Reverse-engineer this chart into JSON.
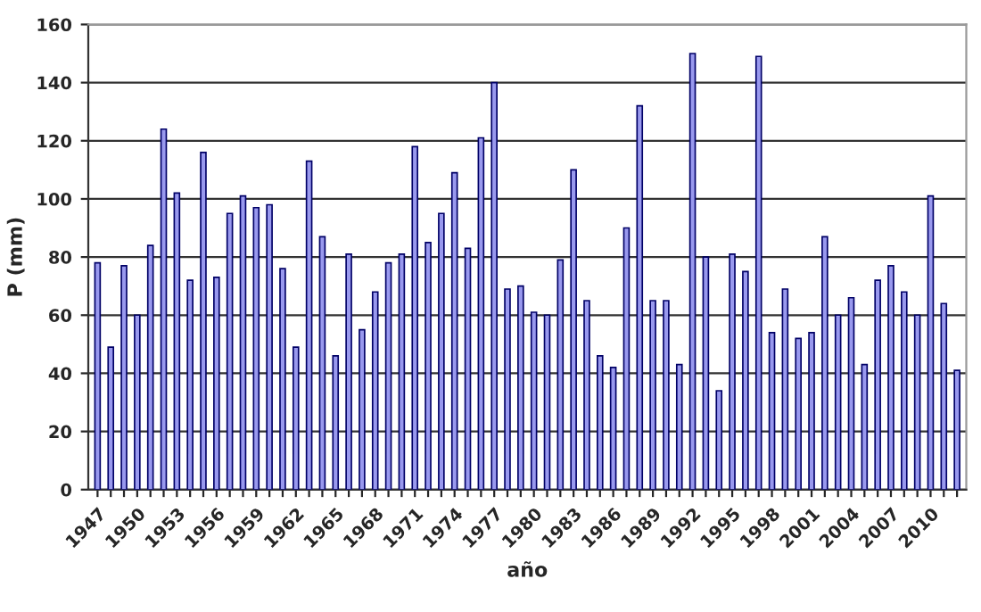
{
  "chart_data": {
    "type": "bar",
    "xlabel": "año",
    "ylabel": "P (mm)",
    "categories": [
      "1947",
      null,
      null,
      "1950",
      null,
      null,
      "1953",
      null,
      null,
      "1956",
      null,
      null,
      "1959",
      null,
      null,
      "1962",
      null,
      null,
      "1965",
      null,
      null,
      "1968",
      null,
      null,
      "1971",
      null,
      null,
      "1974",
      null,
      null,
      "1977",
      null,
      null,
      "1980",
      null,
      null,
      "1983",
      null,
      null,
      "1986",
      null,
      null,
      "1989",
      null,
      null,
      "1992",
      null,
      null,
      "1995",
      null,
      null,
      "1998",
      null,
      null,
      "2001",
      null,
      null,
      "2004",
      null,
      null,
      "2007",
      null,
      null,
      "2010",
      null,
      null
    ],
    "values": [
      78,
      49,
      77,
      60,
      84,
      124,
      102,
      72,
      116,
      73,
      95,
      101,
      97,
      98,
      76,
      49,
      113,
      87,
      46,
      81,
      55,
      68,
      78,
      81,
      118,
      85,
      95,
      109,
      83,
      121,
      140,
      69,
      70,
      61,
      60,
      79,
      110,
      65,
      46,
      42,
      90,
      132,
      65,
      65,
      43,
      150,
      80,
      34,
      81,
      75,
      149,
      54,
      69,
      52,
      54,
      87,
      60,
      66,
      43,
      72,
      77,
      68,
      60,
      101,
      64,
      41
    ],
    "color": "#9999ee",
    "ylim": [
      0,
      160
    ],
    "yticks": [
      0,
      20,
      40,
      60,
      80,
      100,
      120,
      140,
      160
    ],
    "grid": "y",
    "legend": false
  }
}
